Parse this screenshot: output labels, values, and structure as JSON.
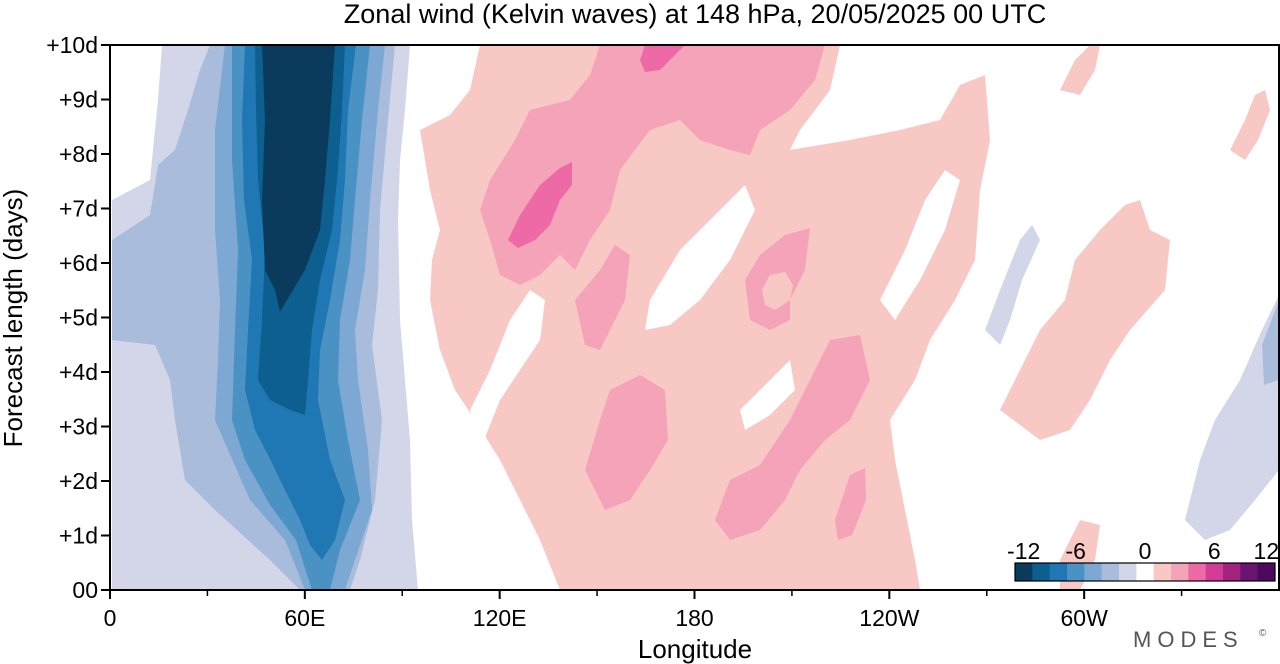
{
  "chart_data": {
    "type": "heatmap",
    "title": "Zonal wind (Kelvin waves) at 148 hPa,  20/05/2025  00 UTC",
    "xlabel": "Longitude",
    "ylabel": "Forecast length (days)",
    "x_range_deg_east": [
      0,
      360
    ],
    "y_range_days": [
      0,
      10
    ],
    "x_ticks": [
      {
        "lon": 0,
        "label": "0"
      },
      {
        "lon": 60,
        "label": "60E"
      },
      {
        "lon": 120,
        "label": "120E"
      },
      {
        "lon": 180,
        "label": "180"
      },
      {
        "lon": 240,
        "label": "120W"
      },
      {
        "lon": 300,
        "label": "60W"
      }
    ],
    "x_minor_ticks": [
      30,
      90,
      150,
      210,
      270,
      330
    ],
    "y_ticks": [
      {
        "day": 0,
        "label": "00"
      },
      {
        "day": 1,
        "label": "+1d"
      },
      {
        "day": 2,
        "label": "+2d"
      },
      {
        "day": 3,
        "label": "+3d"
      },
      {
        "day": 4,
        "label": "+4d"
      },
      {
        "day": 5,
        "label": "+5d"
      },
      {
        "day": 6,
        "label": "+6d"
      },
      {
        "day": 7,
        "label": "+7d"
      },
      {
        "day": 8,
        "label": "+8d"
      },
      {
        "day": 9,
        "label": "+9d"
      },
      {
        "day": 10,
        "label": "+10d"
      }
    ],
    "colorbar": {
      "placement": "bottom-right",
      "tick_labels": [
        "-12",
        "-6",
        "0",
        "6",
        "12"
      ],
      "levels": [
        -14,
        -12,
        -10,
        -8,
        -6,
        -4,
        -2,
        2,
        4,
        6,
        8,
        10,
        12,
        14
      ],
      "colors": [
        "#0b3b5c",
        "#0d5f90",
        "#1f78b4",
        "#4a92c4",
        "#7da8d3",
        "#a9bcdc",
        "#d3d6e9",
        "#ffffff",
        "#f8c8c5",
        "#f5a3b8",
        "#ee6aa7",
        "#d23c96",
        "#a2247e",
        "#6a1472",
        "#4b0a5e"
      ]
    },
    "features": [
      {
        "name": "easterly core",
        "lon_center": 58,
        "days": [
          5,
          10
        ],
        "value": -14
      },
      {
        "name": "easterly band",
        "lon_range": [
          40,
          75
        ],
        "days": [
          0,
          10
        ],
        "value": -10
      },
      {
        "name": "westerly region",
        "lon_range": [
          100,
          260
        ],
        "days": [
          0,
          10
        ],
        "value": 4
      },
      {
        "name": "westerly maximum",
        "lon_center": 130,
        "day_center": 7,
        "value": 8
      }
    ],
    "grid": false
  },
  "branding": {
    "text": "MODES",
    "mark": "©"
  }
}
